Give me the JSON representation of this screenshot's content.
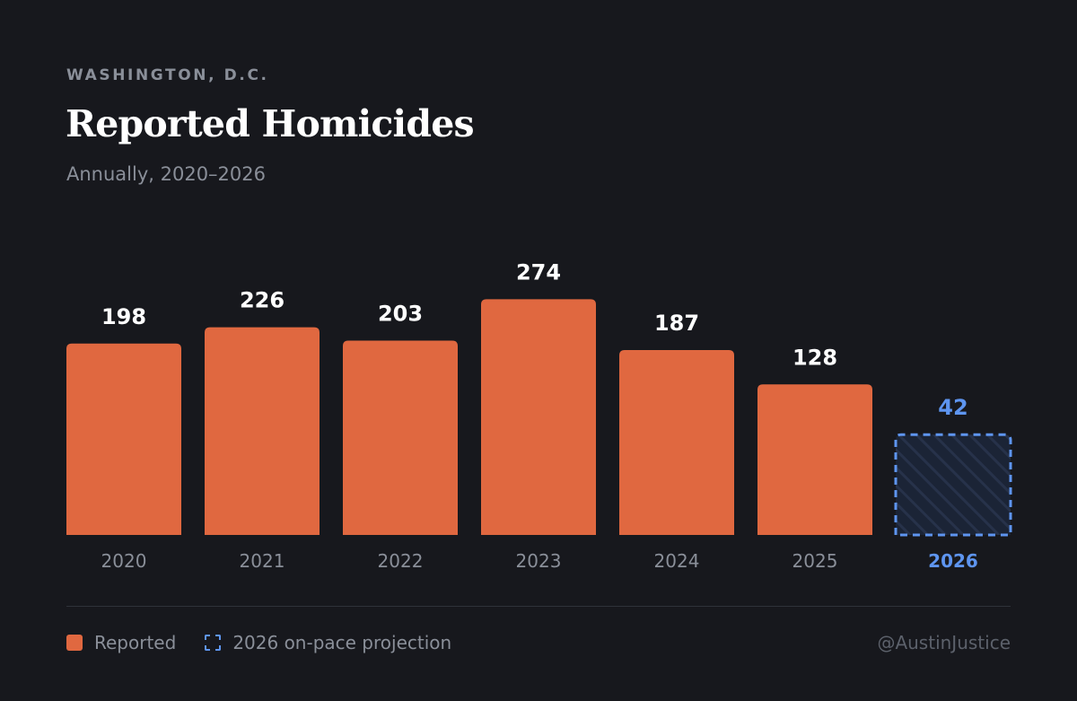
{
  "header": {
    "kicker": "WASHINGTON, D.C.",
    "title": "Reported Homicides",
    "subtitle": "Annually, 2020–2026"
  },
  "chart_data": {
    "type": "bar",
    "categories": [
      "2020",
      "2021",
      "2022",
      "2023",
      "2024",
      "2025",
      "2026"
    ],
    "series": [
      {
        "name": "Reported",
        "values": [
          198,
          226,
          203,
          274,
          187,
          128,
          null
        ]
      },
      {
        "name": "2026 on-pace projection",
        "values": [
          null,
          null,
          null,
          null,
          null,
          null,
          42
        ]
      }
    ],
    "data_labels": [
      "198",
      "226",
      "203",
      "274",
      "187",
      "128",
      "42"
    ],
    "legend_position": "bottom-left",
    "grid": false,
    "colors": {
      "reported": "#e06840",
      "projection": "#5e95f0",
      "label": "#ffffff",
      "axis_label": "#8a8f99"
    }
  },
  "legend": {
    "reported_label": "Reported",
    "projection_label": "2026 on-pace projection"
  },
  "footer": {
    "credit": "@AustinJustice"
  }
}
